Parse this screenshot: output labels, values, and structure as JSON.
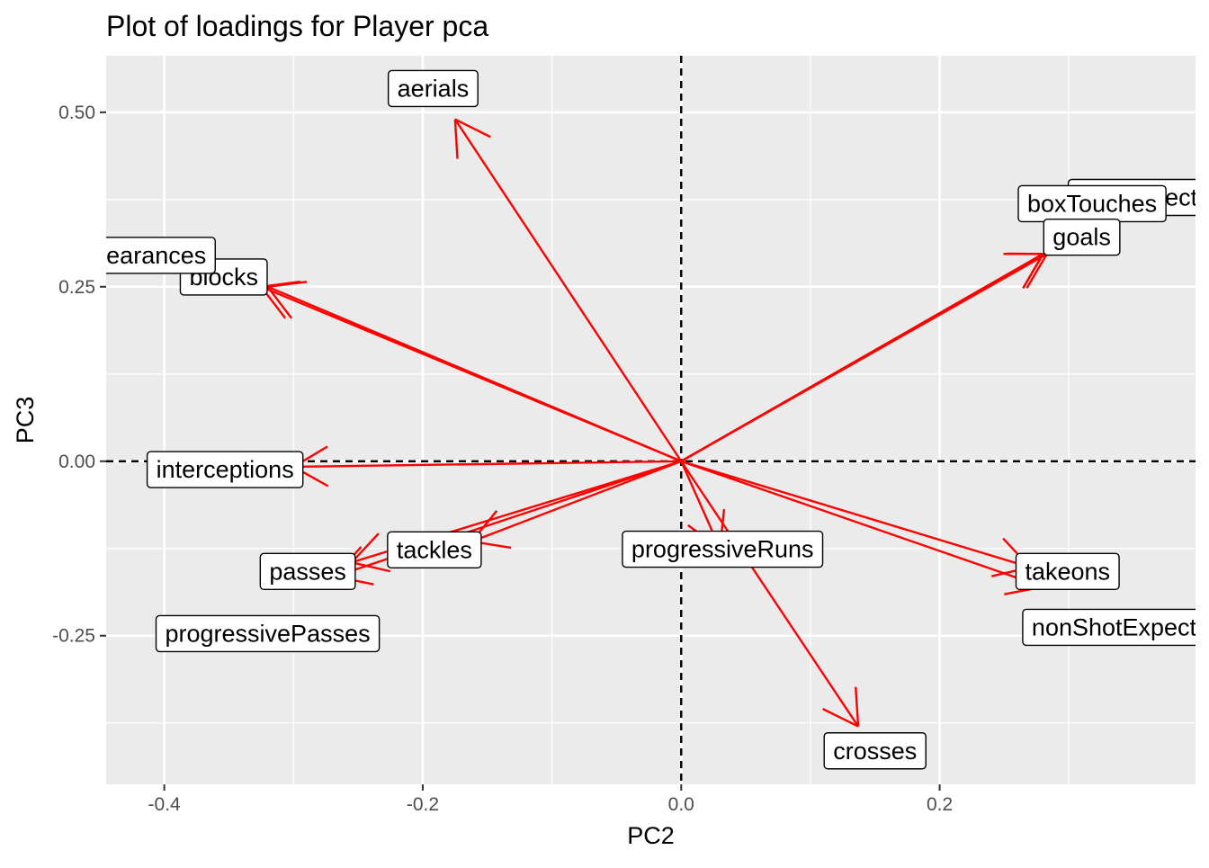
{
  "chart_data": {
    "type": "scatter",
    "subtype": "pca-loadings-biplot",
    "title": "Plot of loadings for Player pca",
    "xlabel": "PC2",
    "ylabel": "PC3",
    "xlim": [
      -0.445,
      0.398
    ],
    "ylim": [
      -0.463,
      0.581
    ],
    "x_ticks": [
      -0.4,
      -0.2,
      0.0,
      0.2
    ],
    "x_tick_labels": [
      "-0.4",
      "-0.2",
      "0.0",
      "0.2"
    ],
    "y_ticks": [
      -0.25,
      0.0,
      0.25,
      0.5
    ],
    "y_tick_labels": [
      "-0.25",
      "0.00",
      "0.25",
      "0.50"
    ],
    "reference_lines": {
      "x": 0,
      "y": 0,
      "style": "dashed"
    },
    "grid": true,
    "legend": "none",
    "colors": {
      "arrow": "#ff0000",
      "panel": "#ebebeb",
      "grid": "#ffffff",
      "label_fill": "#ffffff",
      "label_border": "#000000"
    },
    "vectors": [
      {
        "label": "aerials",
        "x": -0.175,
        "y": 0.49,
        "label_x": -0.192,
        "label_y": 0.534
      },
      {
        "label": "blocks",
        "x": -0.32,
        "y": 0.25,
        "label_x": -0.354,
        "label_y": 0.264
      },
      {
        "label": "clearances",
        "x": -0.325,
        "y": 0.25,
        "label_x": -0.413,
        "label_y": 0.295
      },
      {
        "label": "interceptions",
        "x": -0.3,
        "y": -0.008,
        "label_x": -0.353,
        "label_y": -0.012
      },
      {
        "label": "tackles",
        "x": -0.162,
        "y": -0.115,
        "label_x": -0.191,
        "label_y": -0.127
      },
      {
        "label": "passes",
        "x": -0.255,
        "y": -0.145,
        "label_x": -0.289,
        "label_y": -0.158
      },
      {
        "label": "progressivePasses",
        "x": -0.268,
        "y": -0.165,
        "label_x": -0.32,
        "label_y": -0.247
      },
      {
        "label": "progressiveRuns",
        "x": 0.03,
        "y": -0.125,
        "label_x": 0.032,
        "label_y": -0.126
      },
      {
        "label": "crosses",
        "x": 0.137,
        "y": -0.38,
        "label_x": 0.15,
        "label_y": -0.415
      },
      {
        "label": "takeons",
        "x": 0.27,
        "y": -0.152,
        "label_x": 0.299,
        "label_y": -0.158
      },
      {
        "label": "nonShotExpectedGoals",
        "x": 0.28,
        "y": -0.18,
        "label_x": 0.37,
        "label_y": -0.238
      },
      {
        "label": "shotExpectedGoals",
        "x": 0.283,
        "y": 0.297,
        "label_x": 0.388,
        "label_y": 0.378
      },
      {
        "label": "boxTouches",
        "x": 0.28,
        "y": 0.297,
        "label_x": 0.318,
        "label_y": 0.369
      },
      {
        "label": "goals",
        "x": 0.28,
        "y": 0.297,
        "label_x": 0.31,
        "label_y": 0.321
      }
    ]
  }
}
